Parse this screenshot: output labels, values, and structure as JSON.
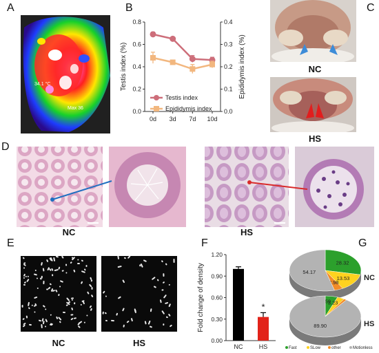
{
  "figure": {
    "panels": {
      "a": {
        "label": "A"
      },
      "b": {
        "label": "B"
      },
      "c": {
        "label": "C",
        "top_caption": "NC",
        "bottom_caption": "HS"
      },
      "d": {
        "label": "D",
        "left_caption": "NC",
        "right_caption": "HS"
      },
      "e": {
        "label": "E",
        "left_caption": "NC",
        "right_caption": "HS"
      },
      "f": {
        "label": "F"
      },
      "g": {
        "label": "G"
      }
    },
    "thermal": {
      "annotation_1": "34.1 °C",
      "annotation_2": "Max 36"
    }
  },
  "chart_data": [
    {
      "id": "B",
      "type": "line",
      "categories": [
        "0d",
        "3d",
        "7d",
        "10d"
      ],
      "ylabel": "Testis index (%)",
      "y2label": "Epididymis index (%)",
      "ylim": [
        0.0,
        0.8
      ],
      "y2lim": [
        0.0,
        0.4
      ],
      "yticks": [
        "0.0",
        "0.2",
        "0.4",
        "0.6",
        "0.8"
      ],
      "y2ticks": [
        "0.0",
        "0.1",
        "0.2",
        "0.3",
        "0.4"
      ],
      "legend_position": "bottom-left",
      "series": [
        {
          "name": "Testis index",
          "axis": "left",
          "values": [
            0.69,
            0.65,
            0.47,
            0.46
          ],
          "errors": [
            0.02,
            0.015,
            0.03,
            0.025
          ],
          "color": "#cd6e7a"
        },
        {
          "name": "Epididymis index",
          "axis": "right",
          "values": [
            0.24,
            0.22,
            0.19,
            0.21
          ],
          "errors": [
            0.025,
            0.01,
            0.02,
            0.015
          ],
          "color": "#f2b77f"
        }
      ]
    },
    {
      "id": "F",
      "type": "bar",
      "categories": [
        "NC",
        "HS"
      ],
      "values": [
        1.0,
        0.33
      ],
      "errors": [
        0.03,
        0.06
      ],
      "colors": [
        "#000000",
        "#e2231a"
      ],
      "ylabel": "Fold change of density",
      "ylim": [
        0.0,
        1.2
      ],
      "yticks": [
        "0.00",
        "0.30",
        "0.60",
        "0.90",
        "1.20"
      ],
      "significance": "*"
    },
    {
      "id": "G",
      "type": "pie",
      "legend": [
        "Fast",
        "SLow",
        "other",
        "Motionless"
      ],
      "legend_colors": [
        "#2ca02c",
        "#ffd21f",
        "#f28c28",
        "#b3b3b3"
      ],
      "legend_position": "bottom",
      "pies": [
        {
          "name": "NC",
          "values": [
            28.32,
            13.53,
            3.98,
            54.17
          ],
          "labels": [
            "28.32",
            "13.53",
            "3.98",
            "54.17"
          ]
        },
        {
          "name": "HS",
          "values": [
            5.59,
            3.23,
            1.28,
            89.9
          ],
          "labels": [
            "5.59",
            "3.23",
            "1.28",
            "89.90"
          ]
        }
      ]
    }
  ]
}
